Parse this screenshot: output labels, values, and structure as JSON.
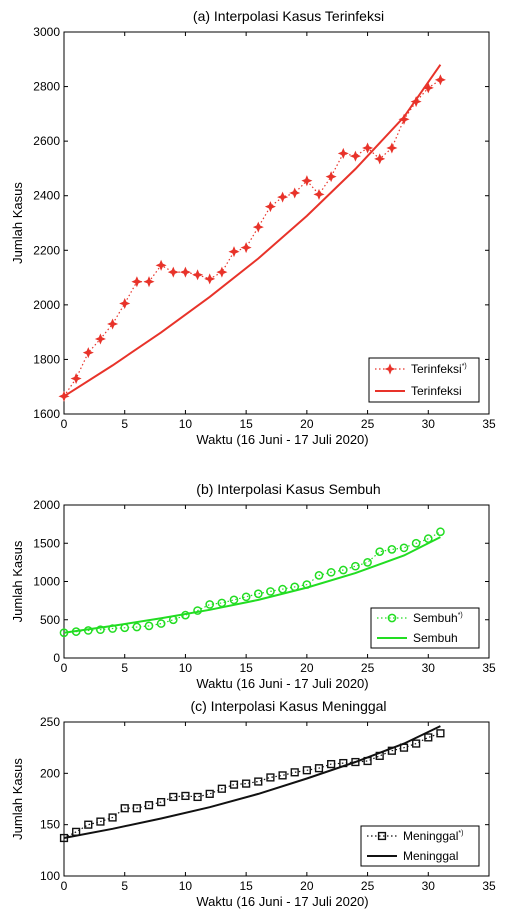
{
  "chart_data": [
    {
      "type": "line",
      "title": "(a) Interpolasi Kasus Terinfeksi",
      "xlabel": "Waktu (16 Juni - 17 Juli 2020)",
      "ylabel": "Jumlah Kasus",
      "xlim": [
        0,
        35
      ],
      "ylim": [
        1600,
        3000
      ],
      "xticks": [
        0,
        5,
        10,
        15,
        20,
        25,
        30,
        35
      ],
      "yticks": [
        1600,
        1800,
        2000,
        2200,
        2400,
        2600,
        2800,
        3000
      ],
      "legend_position": "bottom-right",
      "grid": false,
      "series": [
        {
          "name": "Terinfeksi*)",
          "style": "dotted-marker",
          "marker": "star",
          "color": "#e8332a",
          "x": [
            0,
            1,
            2,
            3,
            4,
            5,
            6,
            7,
            8,
            9,
            10,
            11,
            12,
            13,
            14,
            15,
            16,
            17,
            18,
            19,
            20,
            21,
            22,
            23,
            24,
            25,
            26,
            27,
            28,
            29,
            30,
            31
          ],
          "values": [
            1665,
            1730,
            1825,
            1875,
            1930,
            2005,
            2085,
            2085,
            2145,
            2120,
            2120,
            2110,
            2095,
            2120,
            2195,
            2210,
            2285,
            2360,
            2395,
            2410,
            2455,
            2405,
            2470,
            2555,
            2545,
            2575,
            2535,
            2575,
            2680,
            2745,
            2795,
            2825
          ]
        },
        {
          "name": "Terinfeksi",
          "style": "solid",
          "color": "#e8332a",
          "x": [
            0,
            4,
            8,
            12,
            16,
            20,
            24,
            28,
            31
          ],
          "values": [
            1665,
            1778,
            1899,
            2029,
            2170,
            2326,
            2498,
            2689,
            2880
          ]
        }
      ]
    },
    {
      "type": "line",
      "title": "(b) Interpolasi Kasus Sembuh",
      "xlabel": "Waktu (16 Juni - 17 Juli 2020)",
      "ylabel": "Jumlah Kasus",
      "xlim": [
        0,
        35
      ],
      "ylim": [
        0,
        2000
      ],
      "xticks": [
        0,
        5,
        10,
        15,
        20,
        25,
        30,
        35
      ],
      "yticks": [
        0,
        500,
        1000,
        1500,
        2000
      ],
      "legend_position": "bottom-right",
      "grid": false,
      "series": [
        {
          "name": "Sembuh*)",
          "style": "dotted-marker",
          "marker": "circle",
          "color": "#22dd22",
          "x": [
            0,
            1,
            2,
            3,
            4,
            5,
            6,
            7,
            8,
            9,
            10,
            11,
            12,
            13,
            14,
            15,
            16,
            17,
            18,
            19,
            20,
            21,
            22,
            23,
            24,
            25,
            26,
            27,
            28,
            29,
            30,
            31
          ],
          "values": [
            330,
            345,
            360,
            370,
            385,
            395,
            405,
            420,
            450,
            500,
            560,
            620,
            700,
            720,
            760,
            800,
            840,
            870,
            900,
            930,
            960,
            1080,
            1120,
            1150,
            1200,
            1250,
            1390,
            1420,
            1440,
            1500,
            1560,
            1650
          ]
        },
        {
          "name": "Sembuh",
          "style": "solid",
          "color": "#22dd22",
          "x": [
            0,
            4,
            8,
            12,
            16,
            20,
            24,
            28,
            31
          ],
          "values": [
            330,
            420,
            520,
            630,
            760,
            920,
            1110,
            1340,
            1580
          ]
        }
      ]
    },
    {
      "type": "line",
      "title": "(c) Interpolasi Kasus Meninggal",
      "xlabel": "Waktu (16 Juni - 17 Juli 2020)",
      "ylabel": "Jumlah Kasus",
      "xlim": [
        0,
        35
      ],
      "ylim": [
        100,
        250
      ],
      "xticks": [
        0,
        5,
        10,
        15,
        20,
        25,
        30,
        35
      ],
      "yticks": [
        100,
        150,
        200,
        250
      ],
      "legend_position": "bottom-right",
      "grid": false,
      "series": [
        {
          "name": "Meninggal*)",
          "style": "dotted-marker",
          "marker": "square",
          "color": "#111111",
          "x": [
            0,
            1,
            2,
            3,
            4,
            5,
            6,
            7,
            8,
            9,
            10,
            11,
            12,
            13,
            14,
            15,
            16,
            17,
            18,
            19,
            20,
            21,
            22,
            23,
            24,
            25,
            26,
            27,
            28,
            29,
            30,
            31
          ],
          "values": [
            137,
            143,
            150,
            153,
            157,
            166,
            166,
            169,
            172,
            177,
            178,
            177,
            180,
            185,
            189,
            190,
            192,
            196,
            198,
            201,
            203,
            205,
            209,
            210,
            211,
            212,
            217,
            222,
            225,
            229,
            235,
            239
          ]
        },
        {
          "name": "Meninggal",
          "style": "solid",
          "color": "#111111",
          "x": [
            0,
            4,
            8,
            12,
            16,
            20,
            24,
            28,
            31
          ],
          "values": [
            137,
            146,
            156,
            167,
            180,
            195,
            211,
            229,
            246
          ]
        }
      ]
    }
  ]
}
